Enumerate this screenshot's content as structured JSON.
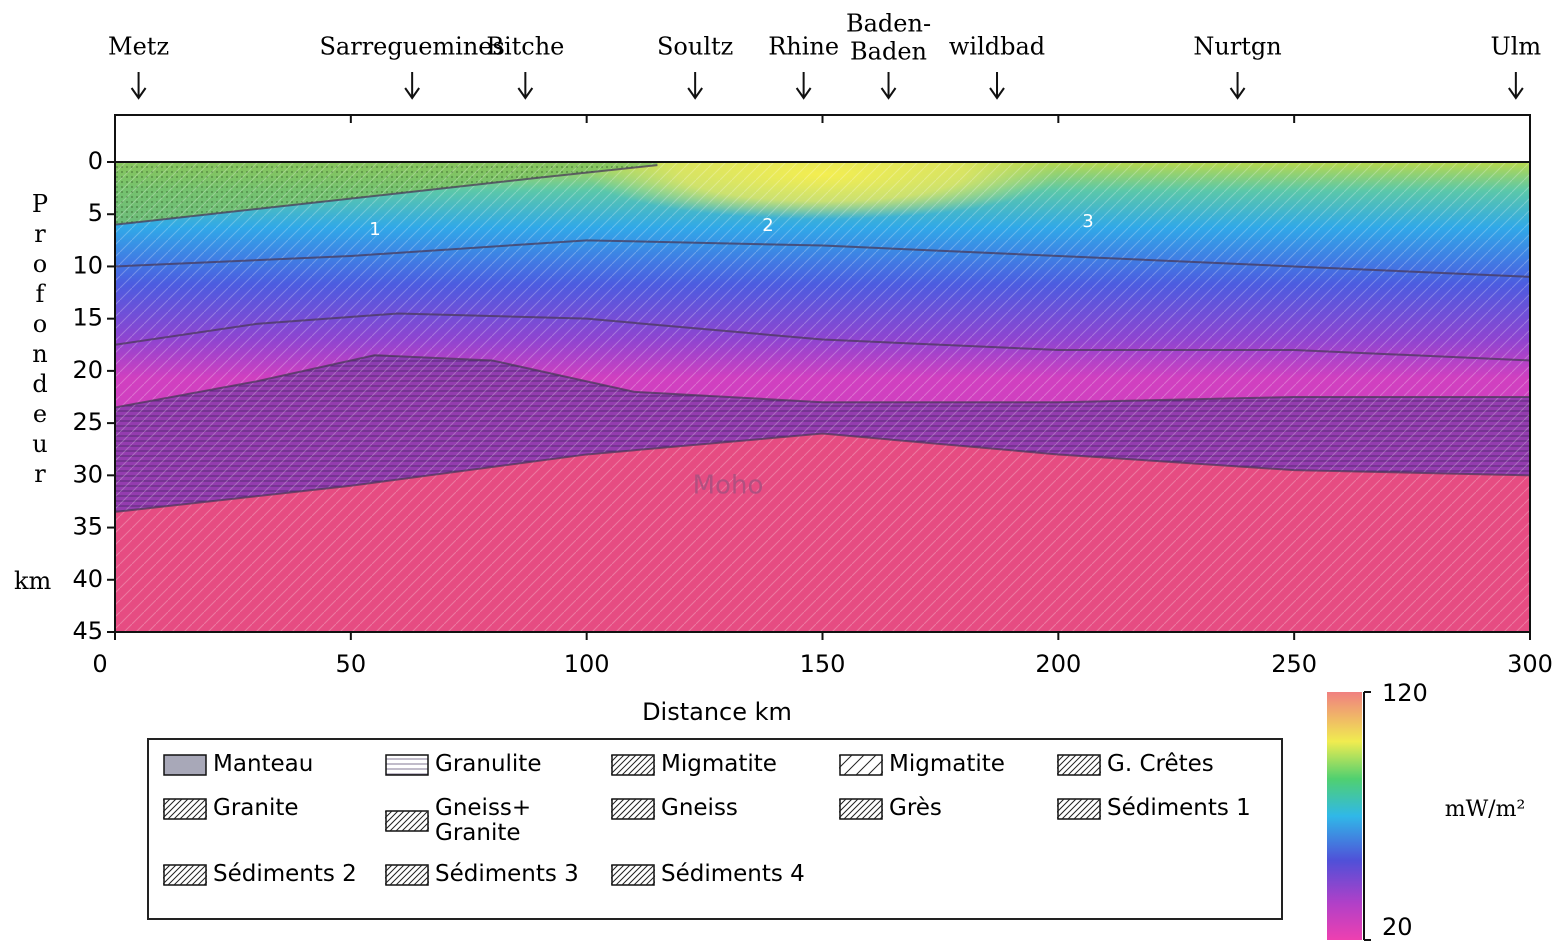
{
  "chart_data": {
    "type": "section",
    "x_label": "Distance km",
    "y_label": "Profondeur",
    "y_unit": "km",
    "xlim": [
      0,
      300
    ],
    "ylim": [
      0,
      45
    ],
    "invert_y": true,
    "xticks": [
      0,
      50,
      100,
      150,
      200,
      250,
      300
    ],
    "yticks": [
      0,
      5,
      10,
      15,
      20,
      25,
      30,
      35,
      40,
      45
    ],
    "locations": [
      {
        "name": [
          "Metz"
        ],
        "x": 5
      },
      {
        "name": [
          "Sarreguemines"
        ],
        "x": 63
      },
      {
        "name": [
          "Bitche"
        ],
        "x": 87
      },
      {
        "name": [
          "Soultz"
        ],
        "x": 123
      },
      {
        "name": [
          "Rhine"
        ],
        "x": 146
      },
      {
        "name": [
          "Baden-",
          "Baden"
        ],
        "x": 164
      },
      {
        "name": [
          "wildbad"
        ],
        "x": 187
      },
      {
        "name": [
          "Nurtgn"
        ],
        "x": 238
      },
      {
        "name": [
          "Ulm"
        ],
        "x": 297
      }
    ],
    "boundaries": [
      {
        "x": [
          0,
          30,
          60,
          90,
          115
        ],
        "depth": [
          6,
          4.5,
          3,
          1.5,
          0.3
        ]
      },
      {
        "x": [
          0,
          50,
          100,
          150,
          200,
          250,
          300
        ],
        "depth": [
          10,
          9,
          7.5,
          8,
          9,
          10,
          11
        ]
      },
      {
        "x": [
          0,
          30,
          60,
          100,
          150,
          200,
          250,
          300
        ],
        "depth": [
          17.5,
          15.5,
          14.5,
          15,
          17,
          18,
          18,
          19
        ]
      },
      {
        "x": [
          0,
          30,
          55,
          80,
          110,
          150,
          200,
          250,
          300
        ],
        "depth": [
          23.5,
          21,
          18.5,
          19,
          22,
          23,
          23,
          22.5,
          22.5
        ]
      },
      {
        "x": [
          0,
          50,
          100,
          150,
          200,
          250,
          300
        ],
        "depth": [
          33.5,
          31,
          28,
          26,
          28,
          29.5,
          30
        ]
      }
    ],
    "zone_labels": [
      "1",
      "2",
      "3",
      "Moho"
    ],
    "legend": [
      "Manteau",
      "Granulite",
      "Migmatite",
      "Migmatite",
      "G. Crêtes",
      "Granite",
      "Gneiss+ Granite",
      "Gneiss",
      "Grès",
      "Sédiments 1",
      "Sédiments 2",
      "Sédiments 3",
      "Sédiments 4"
    ],
    "colorbar": {
      "label": "mW/m²",
      "min": 20,
      "max": 120,
      "ticks": [
        120,
        20
      ]
    }
  }
}
